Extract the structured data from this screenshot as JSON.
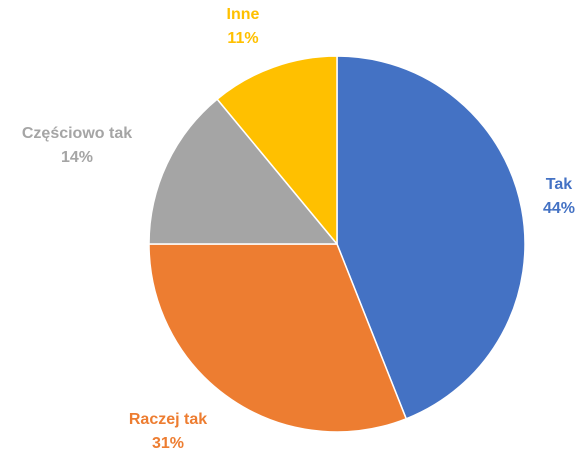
{
  "chart_data": {
    "type": "pie",
    "slices": [
      {
        "label": "Tak",
        "value": 44,
        "value_label": "44%",
        "color": "#4472C4"
      },
      {
        "label": "Raczej tak",
        "value": 31,
        "value_label": "31%",
        "color": "#ED7D31"
      },
      {
        "label": "Częściowo tak",
        "value": 14,
        "value_label": "14%",
        "color": "#A5A5A5"
      },
      {
        "label": "Inne",
        "value": 11,
        "value_label": "11%",
        "color": "#FFC000"
      }
    ],
    "start_angle_deg": 0,
    "direction": "clockwise",
    "legend": "none",
    "labels": "outside, colored by slice, two lines (category, percent)"
  }
}
